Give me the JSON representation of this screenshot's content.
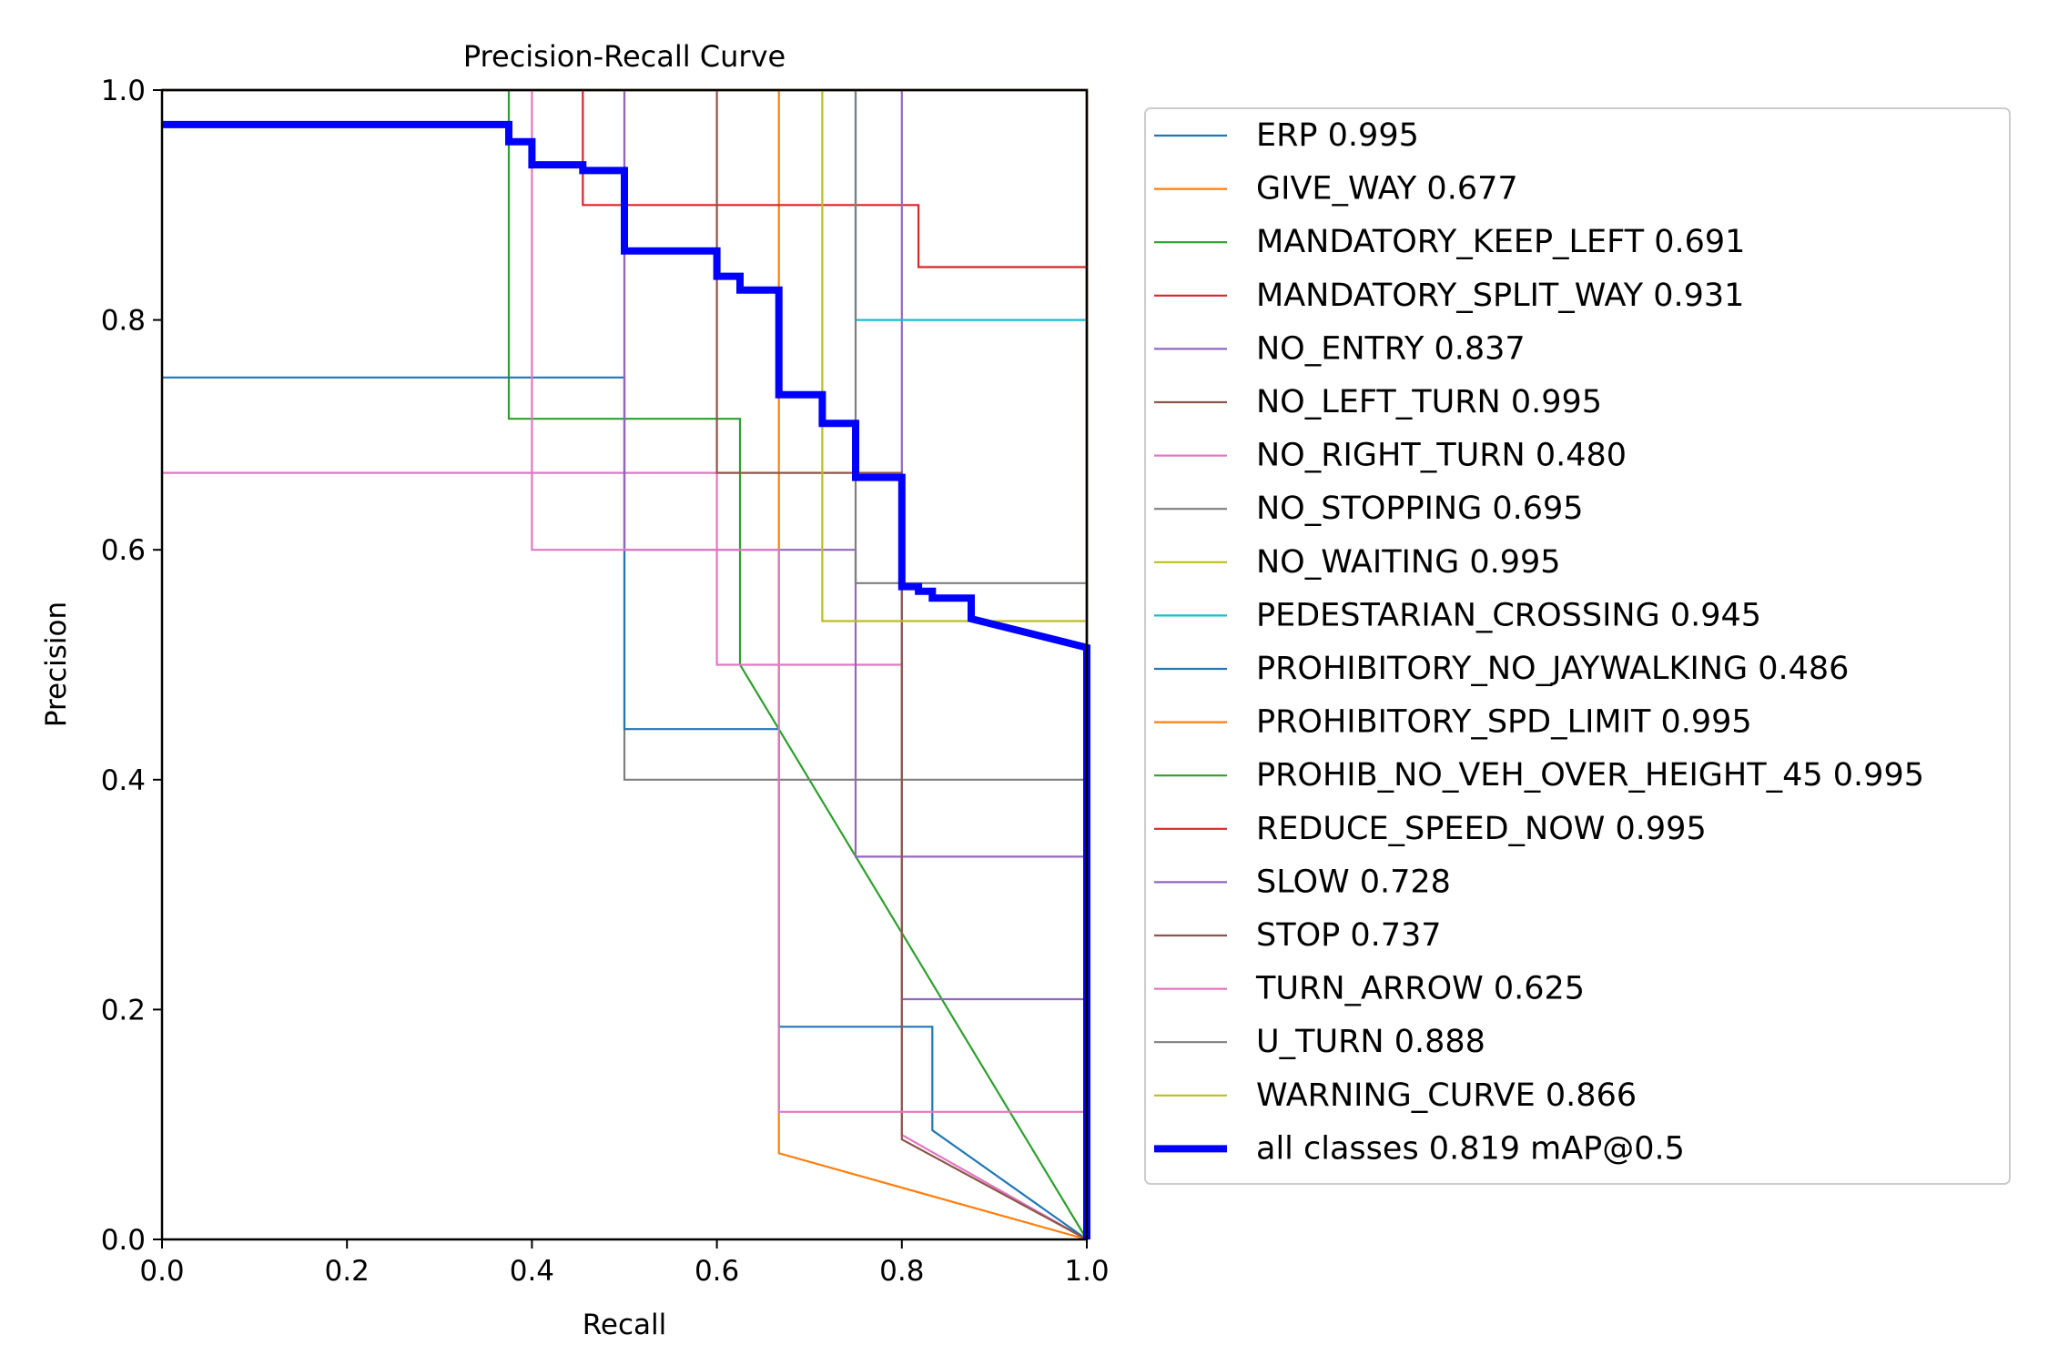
{
  "chart_data": {
    "type": "line",
    "title": "Precision-Recall Curve",
    "xlabel": "Recall",
    "ylabel": "Precision",
    "xlim": [
      0,
      1
    ],
    "ylim": [
      0,
      1
    ],
    "x_ticks": [
      "0.0",
      "0.2",
      "0.4",
      "0.6",
      "0.8",
      "1.0"
    ],
    "y_ticks": [
      "0.0",
      "0.2",
      "0.4",
      "0.6",
      "0.8",
      "1.0"
    ],
    "grid": false,
    "legend_position": "outside-right",
    "series": [
      {
        "name": "ERP 0.995",
        "color": "#1f77b4",
        "points": [
          [
            0,
            1
          ],
          [
            1,
            1
          ],
          [
            1,
            0
          ]
        ]
      },
      {
        "name": "GIVE_WAY 0.677",
        "color": "#ff7f0e",
        "points": [
          [
            0,
            1
          ],
          [
            0.667,
            1
          ],
          [
            0.667,
            0.075
          ],
          [
            1,
            0
          ]
        ]
      },
      {
        "name": "MANDATORY_KEEP_LEFT 0.691",
        "color": "#2ca02c",
        "points": [
          [
            0,
            1
          ],
          [
            0.375,
            1
          ],
          [
            0.375,
            0.714
          ],
          [
            0.625,
            0.714
          ],
          [
            0.625,
            0.5
          ],
          [
            1,
            0
          ]
        ]
      },
      {
        "name": "MANDATORY_SPLIT_WAY 0.931",
        "color": "#d62728",
        "points": [
          [
            0,
            1
          ],
          [
            0.455,
            1
          ],
          [
            0.455,
            0.9
          ],
          [
            0.818,
            0.9
          ],
          [
            0.818,
            0.846
          ],
          [
            1,
            0.846
          ],
          [
            1,
            0
          ]
        ]
      },
      {
        "name": "NO_ENTRY 0.837",
        "color": "#9467bd",
        "points": [
          [
            0,
            1
          ],
          [
            0.8,
            1
          ],
          [
            0.8,
            0.209
          ],
          [
            1,
            0.209
          ],
          [
            1,
            0
          ]
        ]
      },
      {
        "name": "NO_LEFT_TURN 0.995",
        "color": "#8c564b",
        "points": [
          [
            0,
            1
          ],
          [
            1,
            1
          ],
          [
            1,
            0
          ]
        ]
      },
      {
        "name": "NO_RIGHT_TURN 0.480",
        "color": "#e377c2",
        "points": [
          [
            0,
            0.667
          ],
          [
            0.6,
            0.667
          ],
          [
            0.6,
            0.5
          ],
          [
            0.8,
            0.5
          ],
          [
            0.8,
            0.091
          ],
          [
            1,
            0
          ]
        ]
      },
      {
        "name": "NO_STOPPING 0.695",
        "color": "#7f7f7f",
        "points": [
          [
            0,
            1
          ],
          [
            0.5,
            1
          ],
          [
            0.5,
            0.4
          ],
          [
            1,
            0.4
          ],
          [
            1,
            0
          ]
        ]
      },
      {
        "name": "NO_WAITING 0.995",
        "color": "#bcbd22",
        "points": [
          [
            0,
            1
          ],
          [
            1,
            1
          ],
          [
            1,
            0
          ]
        ]
      },
      {
        "name": "PEDESTARIAN_CROSSING 0.945",
        "color": "#17becf",
        "points": [
          [
            0,
            1
          ],
          [
            0.75,
            1
          ],
          [
            0.75,
            0.8
          ],
          [
            1,
            0.8
          ],
          [
            1,
            0
          ]
        ]
      },
      {
        "name": "PROHIBITORY_NO_JAYWALKING 0.486",
        "color": "#1f77b4",
        "points": [
          [
            0,
            0.75
          ],
          [
            0.5,
            0.75
          ],
          [
            0.5,
            0.444
          ],
          [
            0.667,
            0.444
          ],
          [
            0.667,
            0.185
          ],
          [
            0.833,
            0.185
          ],
          [
            0.833,
            0.095
          ],
          [
            1,
            0
          ]
        ]
      },
      {
        "name": "PROHIBITORY_SPD_LIMIT 0.995",
        "color": "#ff7f0e",
        "points": [
          [
            0,
            1
          ],
          [
            1,
            1
          ],
          [
            1,
            0
          ]
        ]
      },
      {
        "name": "PROHIB_NO_VEH_OVER_HEIGHT_45 0.995",
        "color": "#2ca02c",
        "points": [
          [
            0,
            1
          ],
          [
            1,
            1
          ],
          [
            1,
            0
          ]
        ]
      },
      {
        "name": "REDUCE_SPEED_NOW 0.995",
        "color": "#d62728",
        "points": [
          [
            0,
            1
          ],
          [
            1,
            1
          ],
          [
            1,
            0
          ]
        ]
      },
      {
        "name": "SLOW 0.728",
        "color": "#9467bd",
        "points": [
          [
            0,
            1
          ],
          [
            0.5,
            1
          ],
          [
            0.5,
            0.6
          ],
          [
            0.75,
            0.6
          ],
          [
            0.75,
            0.333
          ],
          [
            1,
            0.333
          ],
          [
            1,
            0
          ]
        ]
      },
      {
        "name": "STOP 0.737",
        "color": "#8c564b",
        "points": [
          [
            0,
            1
          ],
          [
            0.6,
            1
          ],
          [
            0.6,
            0.667
          ],
          [
            0.8,
            0.667
          ],
          [
            0.8,
            0.087
          ],
          [
            1,
            0
          ]
        ]
      },
      {
        "name": "TURN_ARROW 0.625",
        "color": "#e377c2",
        "points": [
          [
            0,
            1
          ],
          [
            0.4,
            1
          ],
          [
            0.4,
            0.6
          ],
          [
            0.667,
            0.6
          ],
          [
            0.667,
            0.111
          ],
          [
            1,
            0.111
          ],
          [
            1,
            0
          ]
        ]
      },
      {
        "name": "U_TURN 0.888",
        "color": "#7f7f7f",
        "points": [
          [
            0,
            1
          ],
          [
            0.75,
            1
          ],
          [
            0.75,
            0.571
          ],
          [
            1,
            0.571
          ],
          [
            1,
            0
          ]
        ]
      },
      {
        "name": "WARNING_CURVE 0.866",
        "color": "#bcbd22",
        "points": [
          [
            0,
            1
          ],
          [
            0.714,
            1
          ],
          [
            0.714,
            0.538
          ],
          [
            1,
            0.538
          ],
          [
            1,
            0
          ]
        ]
      },
      {
        "name": "all classes 0.819 mAP@0.5",
        "color": "#0000ff",
        "thick": true,
        "points": [
          [
            0,
            0.97
          ],
          [
            0.375,
            0.97
          ],
          [
            0.375,
            0.955
          ],
          [
            0.4,
            0.955
          ],
          [
            0.4,
            0.935
          ],
          [
            0.455,
            0.935
          ],
          [
            0.455,
            0.93
          ],
          [
            0.5,
            0.93
          ],
          [
            0.5,
            0.86
          ],
          [
            0.6,
            0.86
          ],
          [
            0.6,
            0.838
          ],
          [
            0.625,
            0.838
          ],
          [
            0.625,
            0.826
          ],
          [
            0.667,
            0.826
          ],
          [
            0.667,
            0.735
          ],
          [
            0.714,
            0.735
          ],
          [
            0.714,
            0.71
          ],
          [
            0.75,
            0.71
          ],
          [
            0.75,
            0.663
          ],
          [
            0.8,
            0.663
          ],
          [
            0.8,
            0.568
          ],
          [
            0.818,
            0.568
          ],
          [
            0.818,
            0.564
          ],
          [
            0.833,
            0.564
          ],
          [
            0.833,
            0.558
          ],
          [
            0.875,
            0.558
          ],
          [
            0.875,
            0.54
          ],
          [
            1,
            0.515
          ],
          [
            1,
            0
          ]
        ]
      }
    ]
  }
}
